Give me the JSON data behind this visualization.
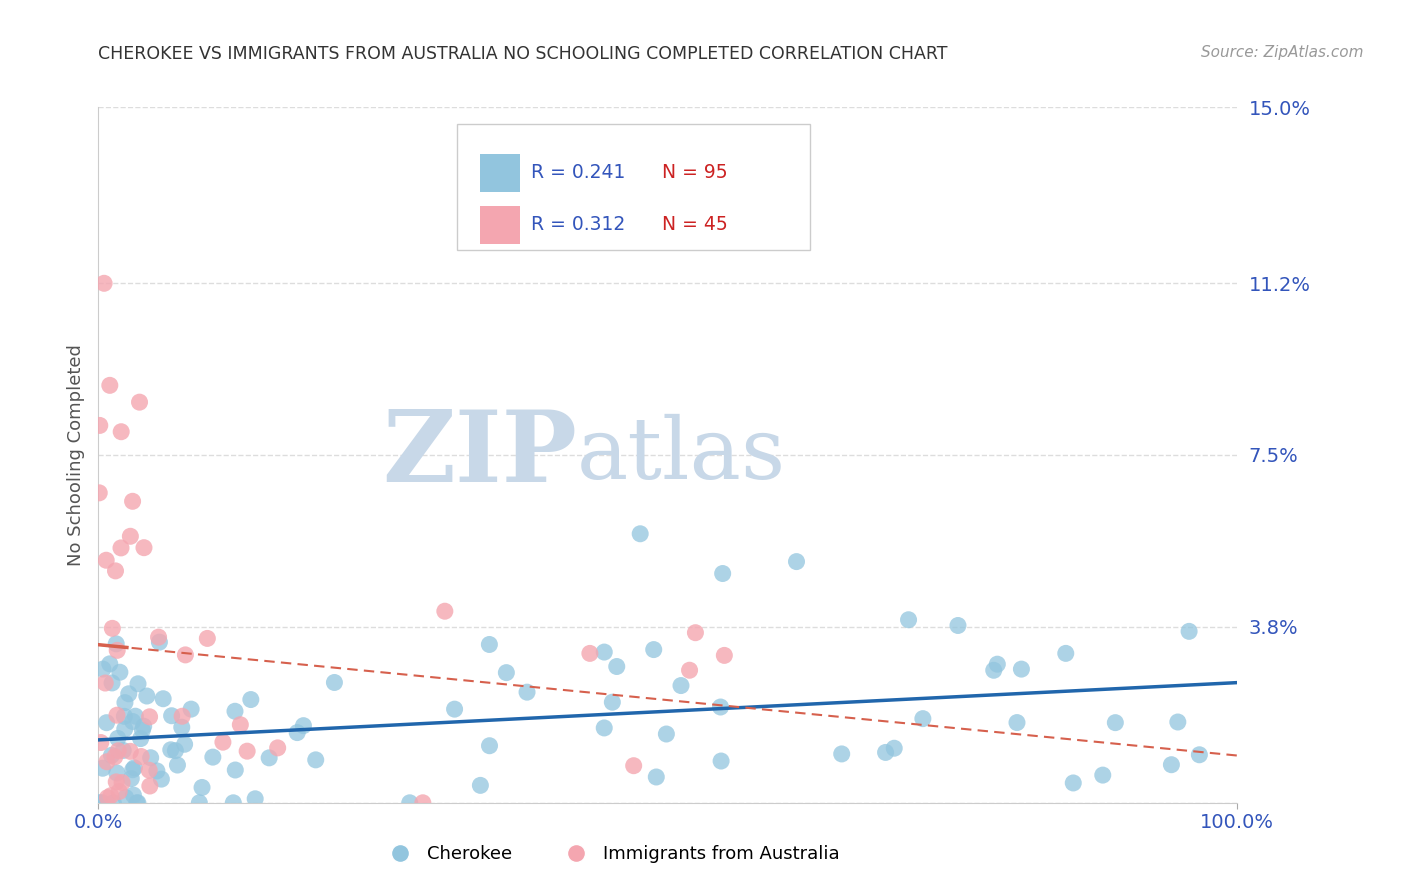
{
  "title": "CHEROKEE VS IMMIGRANTS FROM AUSTRALIA NO SCHOOLING COMPLETED CORRELATION CHART",
  "source": "Source: ZipAtlas.com",
  "ylabel": "No Schooling Completed",
  "ytick_vals": [
    0.0,
    3.8,
    7.5,
    11.2,
    15.0
  ],
  "ytick_labels": [
    "",
    "3.8%",
    "7.5%",
    "11.2%",
    "15.0%"
  ],
  "xlim": [
    0.0,
    100.0
  ],
  "ylim": [
    0.0,
    15.0
  ],
  "series1_name": "Cherokee",
  "series1_color": "#92c5de",
  "series1_R": "0.241",
  "series1_N": "95",
  "series2_name": "Immigrants from Australia",
  "series2_color": "#f4a6b0",
  "series2_R": "0.312",
  "series2_N": "45",
  "trendline1_color": "#2166ac",
  "trendline2_color": "#d6604d",
  "watermark_text": "ZIPatlas",
  "watermark_color": "#c8d8e8",
  "legend_R_color": "#3355bb",
  "legend_N_color": "#cc2222",
  "title_color": "#333333",
  "source_color": "#999999",
  "axis_label_color": "#3355bb",
  "grid_color": "#dddddd"
}
